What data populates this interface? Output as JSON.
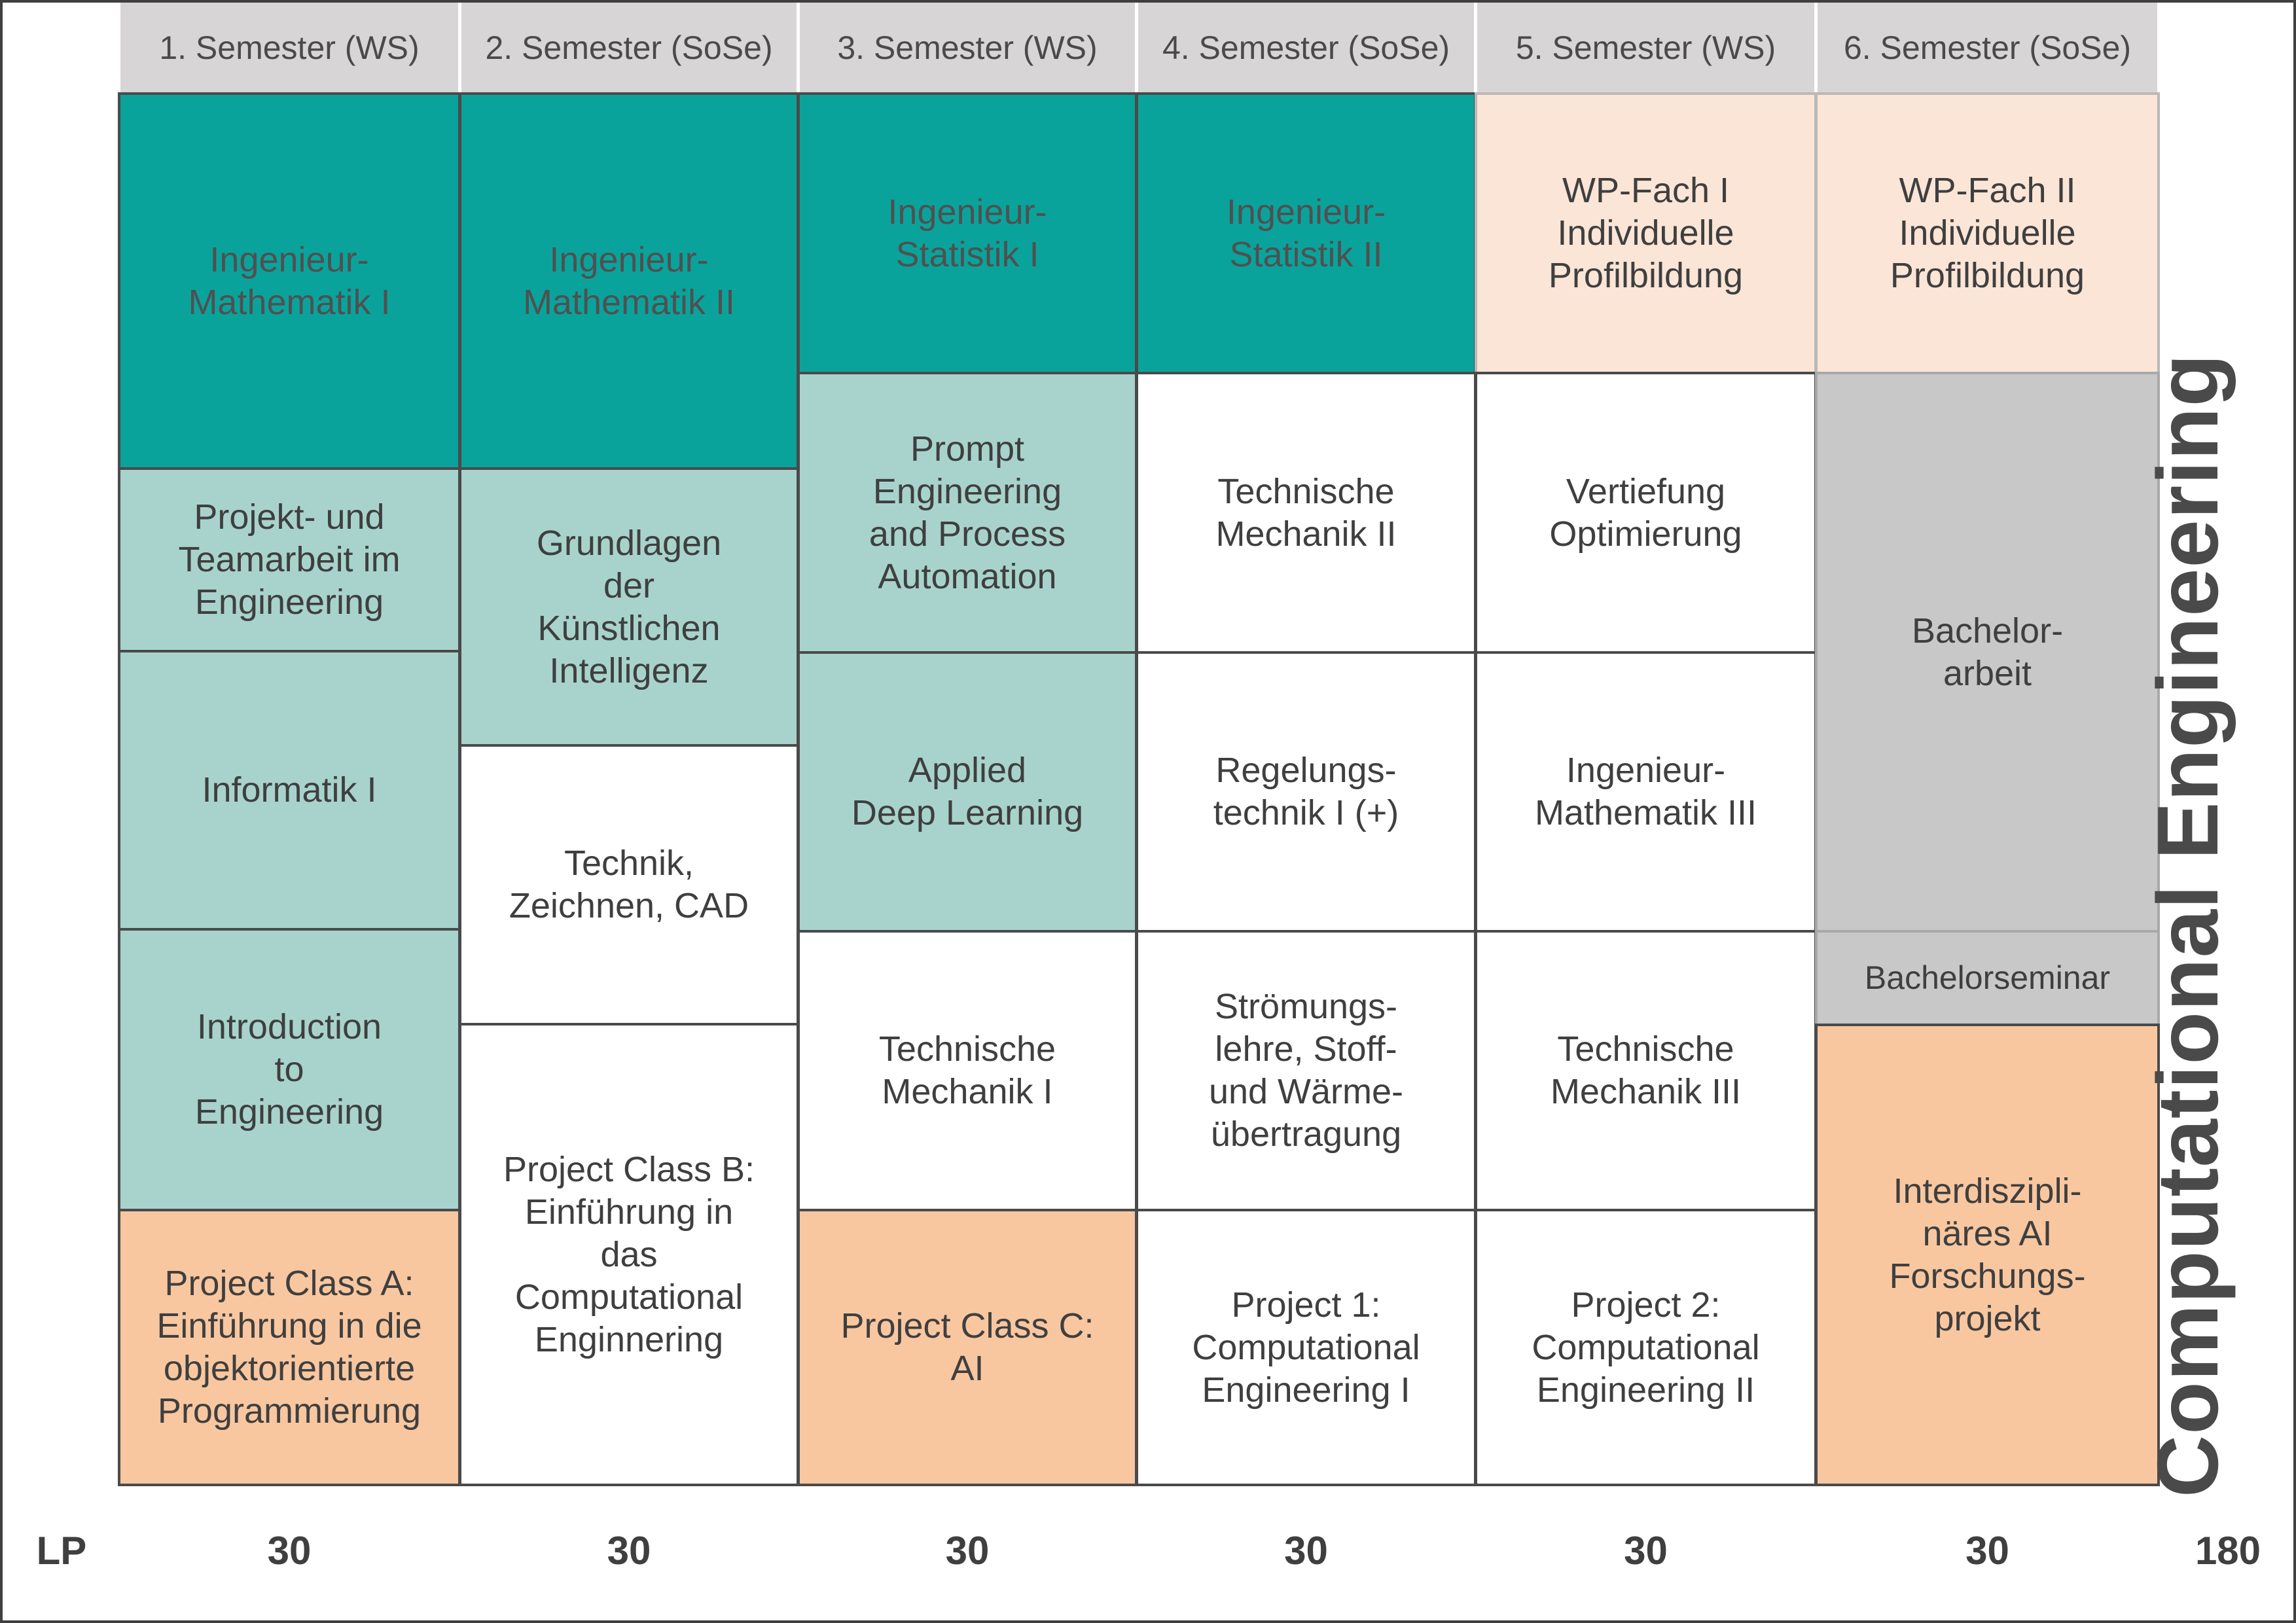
{
  "semesters": [
    "1. Semester (WS)",
    "2. Semester (SoSe)",
    "3. Semester (WS)",
    "4. Semester (SoSe)",
    "5. Semester (WS)",
    "6. Semester (SoSe)"
  ],
  "modules": [
    {
      "semester": 1,
      "label": "Ingenieur-\nMathematik I",
      "category": "mathematics"
    },
    {
      "semester": 1,
      "label": "Projekt- und\nTeamarbeit im\nEngineering",
      "category": "ai-foundations"
    },
    {
      "semester": 1,
      "label": "Informatik I",
      "category": "ai-foundations"
    },
    {
      "semester": 1,
      "label": "Introduction\nto\nEngineering",
      "category": "ai-foundations"
    },
    {
      "semester": 1,
      "label": "Project Class A:\nEinführung in die\nobjektorientierte\nProgrammierung",
      "category": "project"
    },
    {
      "semester": 2,
      "label": "Ingenieur-\nMathematik II",
      "category": "mathematics"
    },
    {
      "semester": 2,
      "label": "Grundlagen\nder\nKünstlichen\nIntelligenz",
      "category": "ai-foundations"
    },
    {
      "semester": 2,
      "label": "Technik,\nZeichnen, CAD",
      "category": "engineering"
    },
    {
      "semester": 2,
      "label": "Project Class B:\nEinführung in\ndas\nComputational\nEnginnering",
      "category": "engineering"
    },
    {
      "semester": 3,
      "label": "Ingenieur-\nStatistik I",
      "category": "mathematics"
    },
    {
      "semester": 3,
      "label": "Prompt\nEngineering\nand Process\nAutomation",
      "category": "ai-foundations"
    },
    {
      "semester": 3,
      "label": "Applied\nDeep Learning",
      "category": "ai-foundations"
    },
    {
      "semester": 3,
      "label": "Technische\nMechanik I",
      "category": "engineering"
    },
    {
      "semester": 3,
      "label": "Project Class C:\nAI",
      "category": "project"
    },
    {
      "semester": 4,
      "label": "Ingenieur-\nStatistik II",
      "category": "mathematics"
    },
    {
      "semester": 4,
      "label": "Technische\nMechanik II",
      "category": "engineering"
    },
    {
      "semester": 4,
      "label": "Regelungs-\ntechnik I (+)",
      "category": "engineering"
    },
    {
      "semester": 4,
      "label": "Strömungs-\nlehre, Stoff-\nund Wärme-\nübertragung",
      "category": "engineering"
    },
    {
      "semester": 4,
      "label": "Project 1:\nComputational\nEngineering I",
      "category": "engineering"
    },
    {
      "semester": 5,
      "label": "WP-Fach I\nIndividuelle\nProfilbildung",
      "category": "elective"
    },
    {
      "semester": 5,
      "label": "Vertiefung\nOptimierung",
      "category": "engineering"
    },
    {
      "semester": 5,
      "label": "Ingenieur-\nMathematik III",
      "category": "engineering"
    },
    {
      "semester": 5,
      "label": "Technische\nMechanik III",
      "category": "engineering"
    },
    {
      "semester": 5,
      "label": "Project 2:\nComputational\nEngineering II",
      "category": "engineering"
    },
    {
      "semester": 6,
      "label": "WP-Fach II\nIndividuelle\nProfilbildung",
      "category": "elective"
    },
    {
      "semester": 6,
      "label": "Bachelor-\narbeit",
      "category": "thesis"
    },
    {
      "semester": 6,
      "label": "Bachelorseminar",
      "category": "thesis"
    },
    {
      "semester": 6,
      "label": "Interdiszipli-\nnäres AI\nForschungs-\nprojekt",
      "category": "project"
    }
  ],
  "credits": {
    "label": "LP",
    "per_semester": [
      "30",
      "30",
      "30",
      "30",
      "30",
      "30"
    ],
    "total": "180"
  },
  "program_title": "Computational Engineering",
  "colors": {
    "mathematics": "#0aa39c",
    "ai-foundations": "#a8d3cd",
    "engineering": "#ffffff",
    "elective": "#fbe5d6",
    "project": "#f8c7a0",
    "thesis": "#c8c8c8",
    "header": "#d8d5d6"
  }
}
